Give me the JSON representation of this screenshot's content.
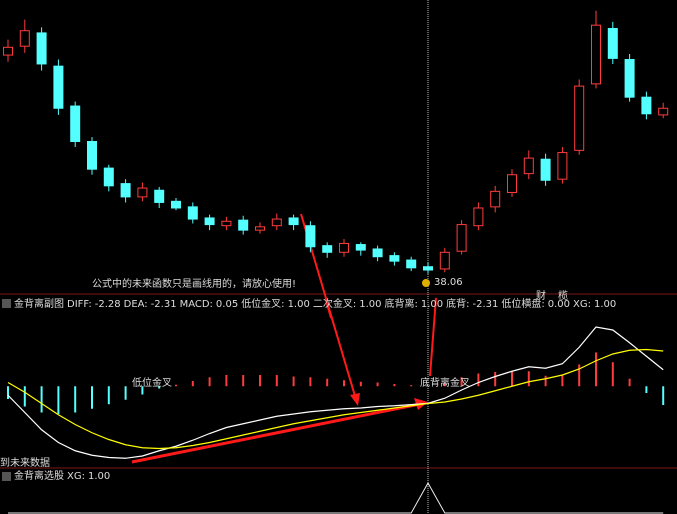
{
  "chart_data": [
    {
      "type": "candlestick",
      "open": [
        57.8,
        58.6,
        59.8,
        56.8,
        53.2,
        50,
        47.6,
        46.2,
        45,
        45.6,
        44.6,
        44.1,
        43.1,
        42.4,
        42.9,
        42,
        42.4,
        43.1,
        42.4,
        40.6,
        40,
        40.7,
        40.3,
        39.7,
        39.3,
        38.7,
        38.5,
        40.1,
        42.4,
        44.1,
        45.4,
        47.1,
        48.4,
        46.6,
        49.2,
        55.2,
        60.2,
        57.4,
        54,
        52.4
      ],
      "high": [
        59.2,
        61,
        60.3,
        57.4,
        53.6,
        50.4,
        47.9,
        46.6,
        46.3,
        45.9,
        44.9,
        44.5,
        43.4,
        43.2,
        43.3,
        42.7,
        43.5,
        43.4,
        42.8,
        40.9,
        41.2,
        40.9,
        40.6,
        40,
        39.6,
        39.1,
        40.4,
        42.9,
        44.5,
        46,
        47.5,
        49.2,
        48.9,
        49.5,
        55.6,
        61.8,
        60.8,
        57.9,
        54.5,
        53.5
      ],
      "low": [
        57.2,
        58,
        56.4,
        52.4,
        49.5,
        47,
        45.5,
        44.5,
        44.6,
        44,
        43.8,
        42.6,
        42,
        42,
        41.6,
        41.7,
        42,
        42,
        40,
        39.5,
        39.6,
        39.7,
        39.2,
        38.8,
        38.3,
        38.06,
        38.2,
        39.8,
        42,
        43.6,
        45,
        46.6,
        46,
        46.2,
        48.8,
        54.8,
        57,
        53.6,
        52,
        52.1
      ],
      "close": [
        58.5,
        60,
        57,
        53,
        50,
        47.5,
        46,
        45,
        45.8,
        44.5,
        44,
        43,
        42.5,
        42.8,
        42,
        42.3,
        43,
        42.5,
        40.5,
        40,
        40.8,
        40.2,
        39.6,
        39.2,
        38.6,
        38.4,
        40,
        42.5,
        44,
        45.5,
        47,
        48.5,
        46.5,
        49,
        55,
        60.5,
        57.5,
        54,
        52.5,
        53
      ],
      "ylim": [
        37.5,
        62.5
      ],
      "up_color": "#ff3c3c",
      "down_color": "#54ffff",
      "annotation": {
        "text": "公式中的未来函数只是画线用的，请放心使用!",
        "color": "#ff2a2a"
      },
      "markers": [
        {
          "text": "财",
          "color": "#6a8cff"
        },
        {
          "text": "榄",
          "color": "#ff9a1a"
        }
      ]
    },
    {
      "type": "macd",
      "title": "金背离副图",
      "series": [
        {
          "name": "DIFF:",
          "color": "#ffffff",
          "values": [
            -1.2,
            -3.5,
            -5.8,
            -7.5,
            -8.6,
            -9.2,
            -9.5,
            -9.6,
            -9.3,
            -8.6,
            -8,
            -7.2,
            -6.3,
            -5.5,
            -5,
            -4.5,
            -4,
            -3.7,
            -3.4,
            -3.2,
            -3,
            -2.9,
            -2.7,
            -2.6,
            -2.45,
            -2.28,
            -1.6,
            -0.5,
            0.5,
            1.3,
            2,
            2.6,
            2.4,
            3,
            5.2,
            7.9,
            7.5,
            5.8,
            4,
            2.2
          ]
        },
        {
          "name": "DEA:",
          "color": "#ffff00",
          "values": [
            0.5,
            -0.8,
            -2.3,
            -3.8,
            -5.1,
            -6.2,
            -7.1,
            -7.8,
            -8.2,
            -8.3,
            -8.2,
            -7.9,
            -7.5,
            -7,
            -6.5,
            -6,
            -5.5,
            -5,
            -4.6,
            -4.2,
            -3.8,
            -3.5,
            -3.2,
            -2.9,
            -2.6,
            -2.31,
            -2.1,
            -1.7,
            -1.2,
            -0.6,
            0,
            0.6,
            1,
            1.5,
            2.3,
            3.4,
            4.3,
            4.8,
            4.9,
            4.7
          ]
        }
      ],
      "histogram": {
        "name": "MACD:",
        "label_color": "#ff40ff",
        "up_color": "#ff3c3c",
        "down_color": "#54ffff",
        "values": [
          -1.7,
          -2.7,
          -3.5,
          -3.7,
          -3.5,
          -3,
          -2.4,
          -1.8,
          -1.1,
          -0.3,
          0.2,
          0.7,
          1.2,
          1.5,
          1.5,
          1.5,
          1.5,
          1.3,
          1.2,
          1,
          0.8,
          0.6,
          0.5,
          0.3,
          0.15,
          0.05,
          0.5,
          1.2,
          1.7,
          1.9,
          2,
          2,
          1.4,
          1.5,
          2.9,
          4.5,
          3.2,
          1,
          -0.9,
          -2.5
        ]
      },
      "readouts": [
        {
          "name": "低位金叉:",
          "value": 1,
          "label": "1.00",
          "color": "#ffff40"
        },
        {
          "name": "二次金叉:",
          "value": 1,
          "label": "1.00",
          "color": "#30ff30"
        },
        {
          "name": "底背离:",
          "value": 1,
          "label": "1.00",
          "color": "#30e0ff"
        },
        {
          "name": "底背:",
          "value": -2.31,
          "color": "#ff3030"
        },
        {
          "name": "低位横盘:",
          "value": 0,
          "label": "0.00",
          "color": "#c0c0c0"
        },
        {
          "name": "XG:",
          "value": 1,
          "label": "1.00",
          "color": "#ffff40"
        }
      ],
      "annotations": [
        {
          "text": "低位金叉",
          "color": "#ffff90"
        },
        {
          "text": "底背离金叉",
          "color": "#ff3030"
        },
        {
          "text": "到未来数据",
          "color": "#808080"
        }
      ],
      "ylim": [
        -10.5,
        9.5
      ]
    },
    {
      "type": "signal",
      "title": "金背离选股",
      "readout": {
        "name": "XG:",
        "value": 1,
        "label": "1.00"
      },
      "values": [
        0,
        0,
        0,
        0,
        0,
        0,
        0,
        0,
        0,
        0,
        0,
        0,
        0,
        0,
        0,
        0,
        0,
        0,
        0,
        0,
        0,
        0,
        0,
        0,
        0,
        1,
        0,
        0,
        0,
        0,
        0,
        0,
        0,
        0,
        0,
        0,
        0,
        0,
        0,
        0
      ],
      "ylim": [
        0,
        1
      ]
    }
  ]
}
